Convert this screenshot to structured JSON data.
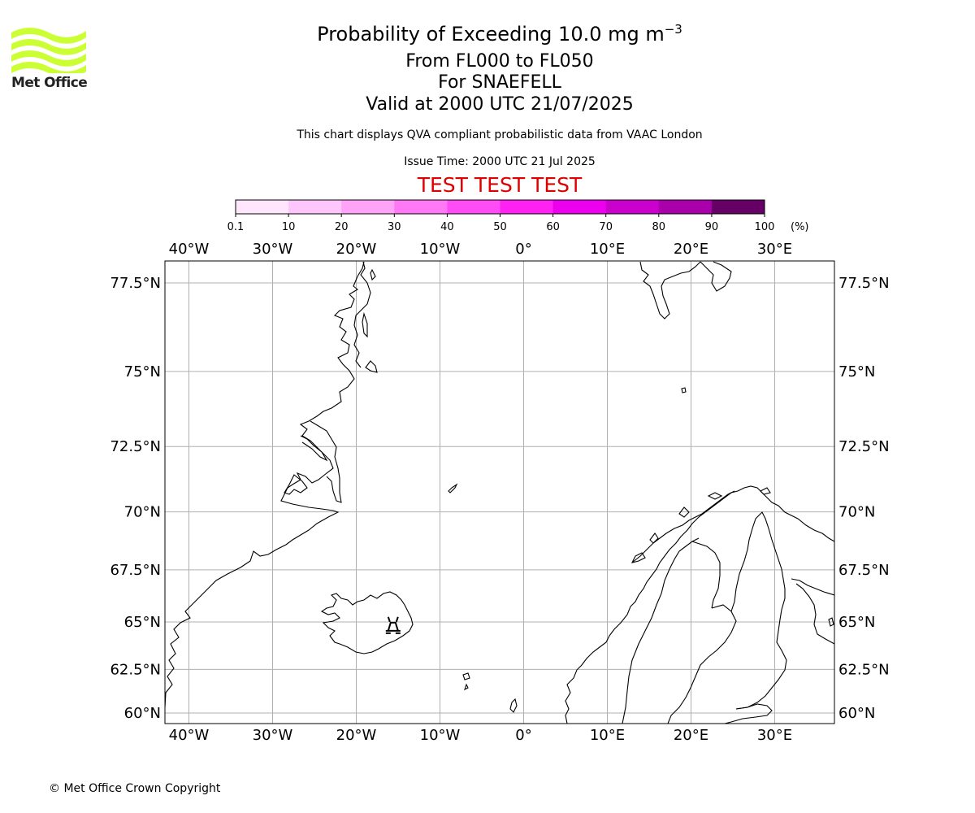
{
  "logo": {
    "brand_text": "Met Office",
    "wave_color": "#ccff33"
  },
  "header": {
    "title_main": "Probability of Exceeding 10.0 mg m",
    "title_exponent": "−3",
    "level_range": "From FL000 to FL050",
    "volcano_line": "For SNAEFELL",
    "valid_time": "Valid at 2000 UTC 21/07/2025",
    "description": "This chart displays QVA compliant probabilistic data from VAAC London",
    "issue_time": "Issue Time: 2000 UTC 21 Jul 2025",
    "test_banner": "TEST TEST TEST"
  },
  "colorbar": {
    "ticks": [
      "0.1",
      "10",
      "20",
      "30",
      "40",
      "50",
      "60",
      "70",
      "80",
      "90",
      "100"
    ],
    "unit": "(%)",
    "colors": [
      "#ffe6fd",
      "#ffc6fb",
      "#ffa3f8",
      "#ff78f6",
      "#ff4cf4",
      "#ff22f2",
      "#ed00ed",
      "#cc00cc",
      "#a900ac",
      "#88008a",
      "#660066"
    ]
  },
  "map": {
    "projection": "Mercator",
    "volcano": {
      "name": "SNAEFELL",
      "lon": -15.6,
      "lat": 64.8,
      "symbol": "volcano-marker"
    },
    "lon_labels": [
      "40°W",
      "30°W",
      "20°W",
      "10°W",
      "0°",
      "10°E",
      "20°E",
      "30°E"
    ],
    "lon_values": [
      -40,
      -30,
      -20,
      -10,
      0,
      10,
      20,
      30
    ],
    "lat_labels": [
      "77.5°N",
      "75°N",
      "72.5°N",
      "70°N",
      "67.5°N",
      "65°N",
      "62.5°N",
      "60°N"
    ],
    "lat_values": [
      77.5,
      75,
      72.5,
      70,
      67.5,
      65,
      62.5,
      60
    ],
    "gridline_color": "#b0b0b0"
  },
  "footer": {
    "copyright": "© Met Office Crown Copyright"
  }
}
